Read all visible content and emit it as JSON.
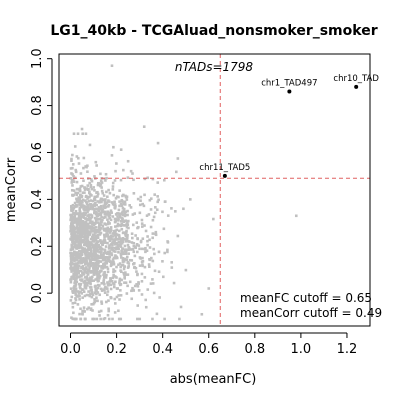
{
  "chart_data": {
    "type": "scatter",
    "title": "LG1_40kb - TCGAluad_nonsmoker_smoker",
    "xlabel": "abs(meanFC)",
    "ylabel": "meanCorr",
    "xlim": [
      -0.05,
      1.3
    ],
    "ylim": [
      -0.14,
      1.02
    ],
    "x_ticks": [
      "0.0",
      "0.2",
      "0.4",
      "0.6",
      "0.8",
      "1.0",
      "1.2"
    ],
    "y_ticks": [
      "0.0",
      "0.2",
      "0.4",
      "0.6",
      "0.8",
      "1.0"
    ],
    "x_tick_values": [
      0,
      0.2,
      0.4,
      0.6,
      0.8,
      1.0,
      1.2
    ],
    "y_tick_values": [
      0,
      0.2,
      0.4,
      0.6,
      0.8,
      1.0
    ],
    "annotation": "nTADs=1798",
    "n_points": 1798,
    "point_color": "#c0c0c0",
    "cutoff_color": "#e06060",
    "meanFC_cutoff": 0.65,
    "meanCorr_cutoff": 0.49,
    "meanFC_cutoff_label": "meanFC cutoff = 0.65",
    "meanCorr_cutoff_label": "meanCorr cutoff = 0.49",
    "highlighted": [
      {
        "label": "chr1_TAD497",
        "x": 0.95,
        "y": 0.86
      },
      {
        "label": "chr10_TAD",
        "x": 1.24,
        "y": 0.88
      },
      {
        "label": "chr11_TAD5",
        "x": 0.67,
        "y": 0.5
      }
    ],
    "outliers": [
      {
        "x": 0.18,
        "y": 0.97
      },
      {
        "x": 0.98,
        "y": 0.33
      },
      {
        "x": 0.52,
        "y": 0.4
      },
      {
        "x": 0.49,
        "y": 0.36
      },
      {
        "x": 0.6,
        "y": 0.02
      },
      {
        "x": 0.57,
        "y": -0.09
      },
      {
        "x": 0.38,
        "y": 0.64
      },
      {
        "x": 0.32,
        "y": 0.71
      },
      {
        "x": 0.05,
        "y": 0.7
      }
    ],
    "grid": false
  }
}
